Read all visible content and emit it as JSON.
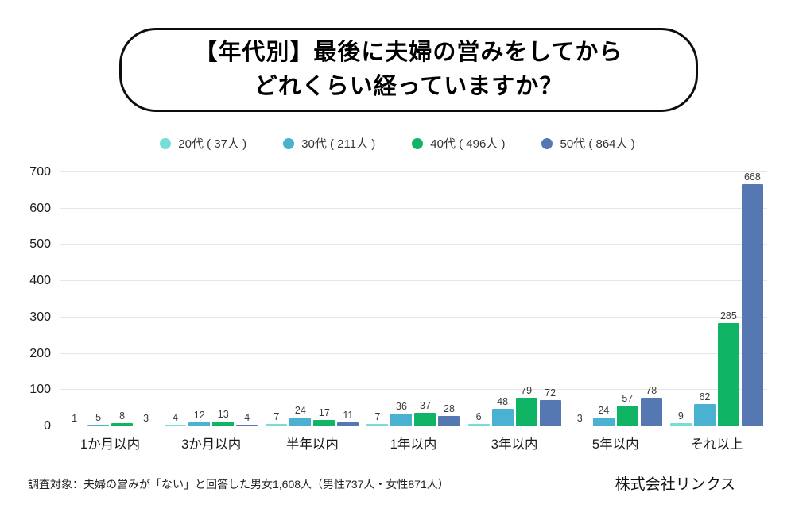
{
  "title": {
    "line1": "【年代別】最後に夫婦の営みをしてから",
    "line2": "どれくらい経っていますか？"
  },
  "chart_data": {
    "type": "bar",
    "title": "【年代別】最後に夫婦の営みをしてから どれくらい経っていますか？",
    "categories": [
      "1か月以内",
      "3か月以内",
      "半年以内",
      "1年以内",
      "3年以内",
      "5年以内",
      "それ以上"
    ],
    "series": [
      {
        "key": "age-20s",
        "name": "20代 ( 37人 )",
        "color": "#76DDD8",
        "values": [
          1,
          4,
          7,
          7,
          6,
          3,
          9
        ]
      },
      {
        "key": "age-30s",
        "name": "30代 ( 211人 )",
        "color": "#4BB1D1",
        "values": [
          5,
          12,
          24,
          36,
          48,
          24,
          62
        ]
      },
      {
        "key": "age-40s",
        "name": "40代 ( 496人 )",
        "color": "#0FB565",
        "values": [
          8,
          13,
          17,
          37,
          79,
          57,
          285
        ]
      },
      {
        "key": "age-50s",
        "name": "50代 ( 864人 )",
        "color": "#5578B2",
        "values": [
          3,
          4,
          11,
          28,
          72,
          78,
          668
        ]
      }
    ],
    "ylim": [
      0,
      700
    ],
    "yticks": [
      0,
      100,
      200,
      300,
      400,
      500,
      600,
      700
    ],
    "grid": true,
    "legend_position": "top",
    "xlabel": "",
    "ylabel": ""
  },
  "footer": {
    "note": "調査対象：夫婦の営みが「ない」と回答した男女1,608人（男性737人・女性871人）",
    "company": "株式会社リンクス"
  }
}
